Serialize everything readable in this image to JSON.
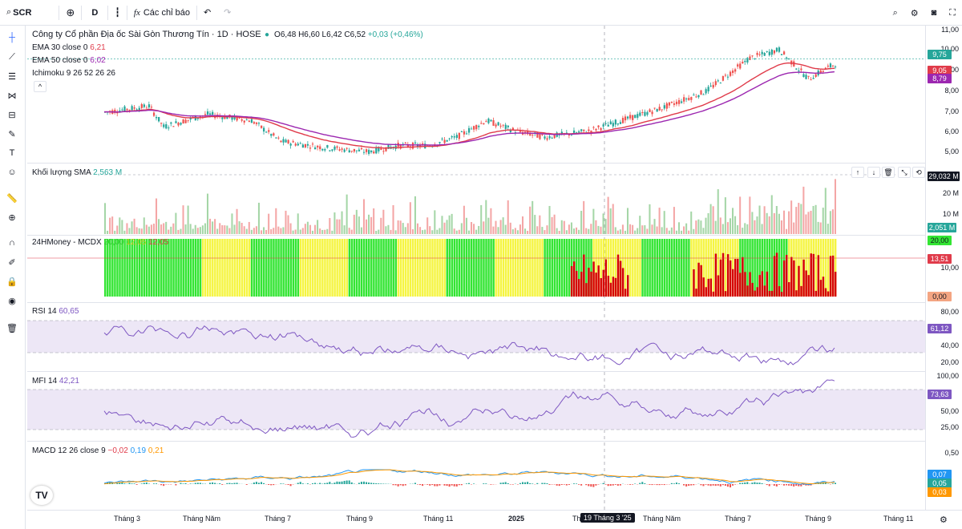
{
  "topbar": {
    "symbol": "SCR",
    "interval": "D",
    "indicators": "Các chỉ báo"
  },
  "chart": {
    "title": "Công ty Cổ phần Địa ốc Sài Gòn Thương Tín · 1D · HOSE",
    "ohlc": {
      "o": "O6,48",
      "h": "H6,60",
      "l": "L6,42",
      "c": "C6,52",
      "chg": "+0,03 (+0,46%)"
    },
    "ema30": {
      "label": "EMA 30 close 0",
      "value": "6,21"
    },
    "ema50": {
      "label": "EMA 50 close 0",
      "value": "6,02"
    },
    "ichimoku": {
      "label": "Ichimoku 9 26 52 26 26"
    },
    "price_ticks": [
      "11,00",
      "10,00",
      "9,00",
      "8,00",
      "7,00",
      "6,00",
      "5,00"
    ],
    "price_badges": [
      "9,75",
      "9,05",
      "8,79"
    ],
    "volume": {
      "label": "Khối lượng SMA",
      "value": "2,563 M",
      "ticks": [
        "20 M",
        "10 M"
      ],
      "badges": [
        "29,032 M",
        "2,051 M"
      ]
    },
    "mcdx": {
      "label": "24HMoney - MCDX",
      "v1": "20,00",
      "v2": "12,05",
      "v3": "12,05",
      "ticks": [
        "10,00"
      ],
      "badges": [
        "20,00",
        "13,51",
        "0,00"
      ]
    },
    "rsi": {
      "label": "RSI 14",
      "value": "60,65",
      "ticks": [
        "80,00",
        "40,00",
        "20,00"
      ],
      "badge": "61,12"
    },
    "mfi": {
      "label": "MFI 14",
      "value": "42,21",
      "ticks": [
        "100,00",
        "50,00",
        "25,00"
      ],
      "badge": "73,63"
    },
    "macd": {
      "label": "MACD 12 26 close 9",
      "v1": "−0,02",
      "v2": "0,19",
      "v3": "0,21",
      "ticks": [
        "0,50",
        "0,00"
      ],
      "badges": [
        "0,07",
        "0,05",
        "0,03"
      ]
    },
    "xaxis": [
      "Tháng 3",
      "Tháng Năm",
      "Tháng 7",
      "Tháng 9",
      "Tháng 11",
      "2025",
      "Th",
      "Tháng Năm",
      "Tháng 7",
      "Tháng 9",
      "Tháng 11"
    ],
    "crosshair_date": "19 Tháng 3 '25",
    "colors": {
      "up": "#26a69a",
      "down": "#ef5350",
      "ema30": "#e03b4a",
      "ema50": "#9c27b0",
      "green": "#33e533",
      "yellow": "#f5f542",
      "red": "#d50000",
      "osc": "#7e57c2"
    }
  }
}
